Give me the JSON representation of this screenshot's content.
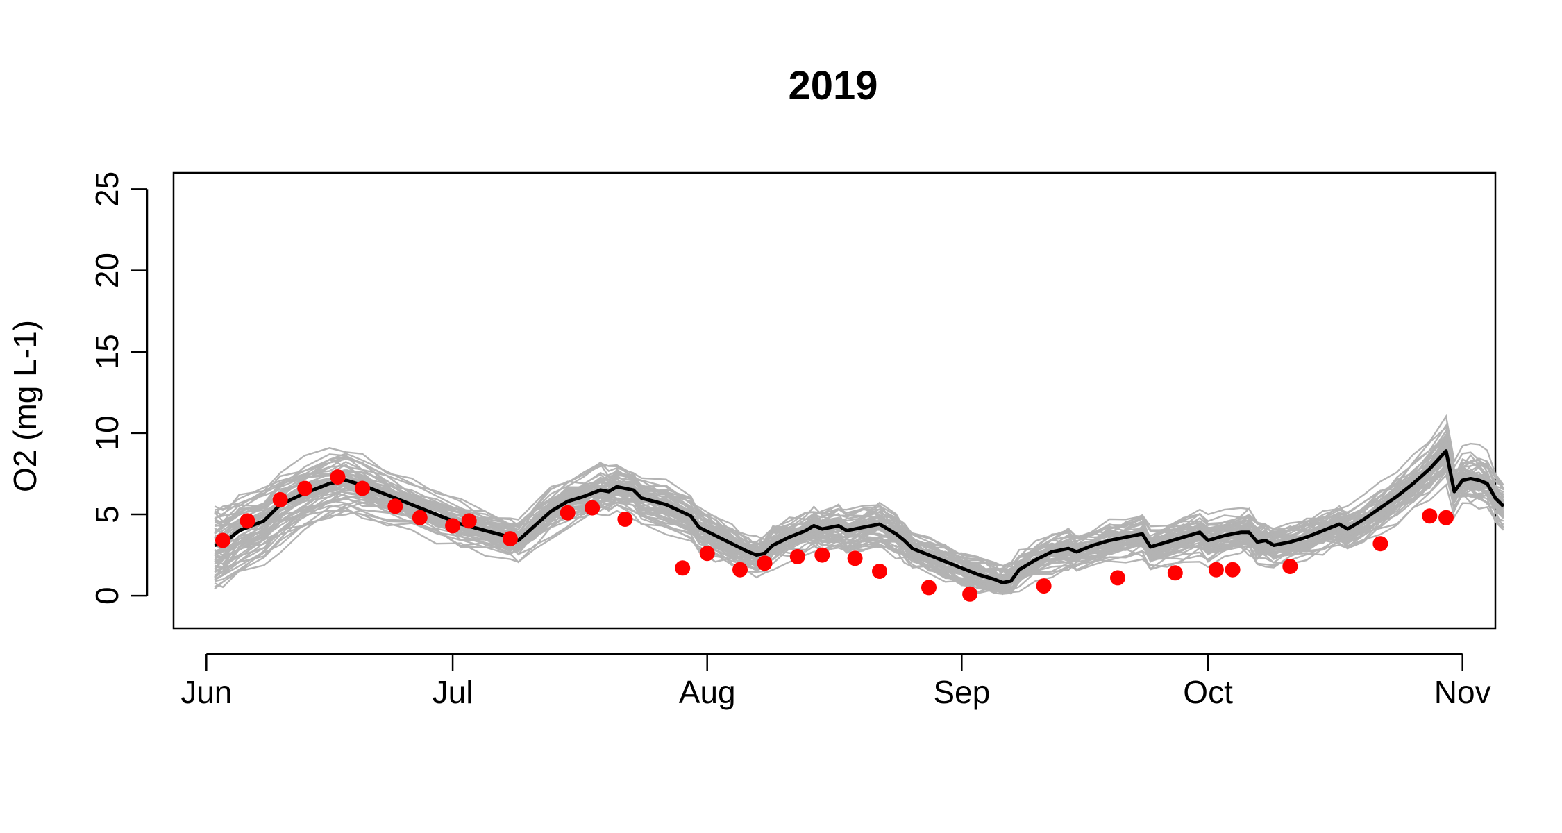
{
  "chart_data": {
    "type": "line",
    "title": "2019",
    "xlabel": "",
    "ylabel": "O2 (mg L-1)",
    "ylim": [
      -2,
      26
    ],
    "xlim": [
      "2019-05-28",
      "2019-11-05"
    ],
    "grid": false,
    "x_ticks": [
      {
        "date": "2019-06-01",
        "label": "Jun"
      },
      {
        "date": "2019-07-01",
        "label": "Jul"
      },
      {
        "date": "2019-08-01",
        "label": "Aug"
      },
      {
        "date": "2019-09-01",
        "label": "Sep"
      },
      {
        "date": "2019-10-01",
        "label": "Oct"
      },
      {
        "date": "2019-11-01",
        "label": "Nov"
      }
    ],
    "y_ticks": [
      0,
      5,
      10,
      15,
      20,
      25
    ],
    "colors": {
      "ensemble": "#b3b3b3",
      "mean": "#000000",
      "observed": "#ff0000"
    },
    "series": [
      {
        "kind": "ensemble-line",
        "values": [
          {
            "x": "2019-06-02",
            "y": 3.1
          },
          {
            "x": "2019-06-03",
            "y": 3.2
          },
          {
            "x": "2019-06-05",
            "y": 4.0
          },
          {
            "x": "2019-06-08",
            "y": 4.6
          },
          {
            "x": "2019-06-10",
            "y": 5.6
          },
          {
            "x": "2019-06-13",
            "y": 6.3
          },
          {
            "x": "2019-06-16",
            "y": 6.9
          },
          {
            "x": "2019-06-18",
            "y": 7.1
          },
          {
            "x": "2019-06-20",
            "y": 6.8
          },
          {
            "x": "2019-06-23",
            "y": 6.2
          },
          {
            "x": "2019-06-26",
            "y": 5.6
          },
          {
            "x": "2019-06-29",
            "y": 5.0
          },
          {
            "x": "2019-07-02",
            "y": 4.4
          },
          {
            "x": "2019-07-05",
            "y": 4.0
          },
          {
            "x": "2019-07-08",
            "y": 3.6
          },
          {
            "x": "2019-07-09",
            "y": 3.4
          },
          {
            "x": "2019-07-11",
            "y": 4.3
          },
          {
            "x": "2019-07-13",
            "y": 5.2
          },
          {
            "x": "2019-07-15",
            "y": 5.8
          },
          {
            "x": "2019-07-17",
            "y": 6.1
          },
          {
            "x": "2019-07-19",
            "y": 6.5
          },
          {
            "x": "2019-07-20",
            "y": 6.4
          },
          {
            "x": "2019-07-21",
            "y": 6.7
          },
          {
            "x": "2019-07-23",
            "y": 6.5
          },
          {
            "x": "2019-07-24",
            "y": 6.0
          },
          {
            "x": "2019-07-27",
            "y": 5.6
          },
          {
            "x": "2019-07-30",
            "y": 4.9
          },
          {
            "x": "2019-07-31",
            "y": 4.2
          },
          {
            "x": "2019-08-02",
            "y": 3.7
          },
          {
            "x": "2019-08-04",
            "y": 3.2
          },
          {
            "x": "2019-08-06",
            "y": 2.7
          },
          {
            "x": "2019-08-07",
            "y": 2.5
          },
          {
            "x": "2019-08-08",
            "y": 2.6
          },
          {
            "x": "2019-08-09",
            "y": 3.1
          },
          {
            "x": "2019-08-11",
            "y": 3.6
          },
          {
            "x": "2019-08-13",
            "y": 4.0
          },
          {
            "x": "2019-08-14",
            "y": 4.3
          },
          {
            "x": "2019-08-15",
            "y": 4.1
          },
          {
            "x": "2019-08-17",
            "y": 4.3
          },
          {
            "x": "2019-08-18",
            "y": 4.0
          },
          {
            "x": "2019-08-20",
            "y": 4.2
          },
          {
            "x": "2019-08-22",
            "y": 4.4
          },
          {
            "x": "2019-08-24",
            "y": 3.8
          },
          {
            "x": "2019-08-25",
            "y": 3.4
          },
          {
            "x": "2019-08-26",
            "y": 2.9
          },
          {
            "x": "2019-08-28",
            "y": 2.5
          },
          {
            "x": "2019-08-30",
            "y": 2.1
          },
          {
            "x": "2019-09-01",
            "y": 1.7
          },
          {
            "x": "2019-09-03",
            "y": 1.3
          },
          {
            "x": "2019-09-05",
            "y": 1.0
          },
          {
            "x": "2019-09-06",
            "y": 0.8
          },
          {
            "x": "2019-09-07",
            "y": 0.9
          },
          {
            "x": "2019-09-08",
            "y": 1.6
          },
          {
            "x": "2019-09-10",
            "y": 2.2
          },
          {
            "x": "2019-09-12",
            "y": 2.7
          },
          {
            "x": "2019-09-14",
            "y": 2.9
          },
          {
            "x": "2019-09-15",
            "y": 2.7
          },
          {
            "x": "2019-09-17",
            "y": 3.1
          },
          {
            "x": "2019-09-19",
            "y": 3.4
          },
          {
            "x": "2019-09-21",
            "y": 3.6
          },
          {
            "x": "2019-09-23",
            "y": 3.8
          },
          {
            "x": "2019-09-24",
            "y": 3.0
          },
          {
            "x": "2019-09-26",
            "y": 3.3
          },
          {
            "x": "2019-09-28",
            "y": 3.6
          },
          {
            "x": "2019-09-30",
            "y": 3.9
          },
          {
            "x": "2019-10-01",
            "y": 3.4
          },
          {
            "x": "2019-10-03",
            "y": 3.7
          },
          {
            "x": "2019-10-05",
            "y": 3.9
          },
          {
            "x": "2019-10-06",
            "y": 3.9
          },
          {
            "x": "2019-10-07",
            "y": 3.3
          },
          {
            "x": "2019-10-08",
            "y": 3.4
          },
          {
            "x": "2019-10-09",
            "y": 3.1
          },
          {
            "x": "2019-10-11",
            "y": 3.3
          },
          {
            "x": "2019-10-13",
            "y": 3.6
          },
          {
            "x": "2019-10-15",
            "y": 4.0
          },
          {
            "x": "2019-10-17",
            "y": 4.4
          },
          {
            "x": "2019-10-18",
            "y": 4.1
          },
          {
            "x": "2019-10-20",
            "y": 4.7
          },
          {
            "x": "2019-10-22",
            "y": 5.4
          },
          {
            "x": "2019-10-24",
            "y": 6.1
          },
          {
            "x": "2019-10-26",
            "y": 6.9
          },
          {
            "x": "2019-10-28",
            "y": 7.8
          },
          {
            "x": "2019-10-30",
            "y": 8.9
          },
          {
            "x": "2019-10-31",
            "y": 6.4
          },
          {
            "x": "2019-11-01",
            "y": 7.1
          },
          {
            "x": "2019-11-02",
            "y": 7.2
          },
          {
            "x": "2019-11-03",
            "y": 7.1
          },
          {
            "x": "2019-11-04",
            "y": 6.9
          },
          {
            "x": "2019-11-05",
            "y": 6.0
          },
          {
            "x": "2019-11-06",
            "y": 5.5
          }
        ]
      },
      {
        "kind": "mean-line",
        "values": [
          {
            "x": "2019-06-02",
            "y": 3.1
          },
          {
            "x": "2019-06-03",
            "y": 3.2
          },
          {
            "x": "2019-06-05",
            "y": 4.0
          },
          {
            "x": "2019-06-08",
            "y": 4.6
          },
          {
            "x": "2019-06-10",
            "y": 5.6
          },
          {
            "x": "2019-06-13",
            "y": 6.3
          },
          {
            "x": "2019-06-16",
            "y": 6.9
          },
          {
            "x": "2019-06-18",
            "y": 7.1
          },
          {
            "x": "2019-06-20",
            "y": 6.8
          },
          {
            "x": "2019-06-23",
            "y": 6.2
          },
          {
            "x": "2019-06-26",
            "y": 5.6
          },
          {
            "x": "2019-06-29",
            "y": 5.0
          },
          {
            "x": "2019-07-02",
            "y": 4.4
          },
          {
            "x": "2019-07-05",
            "y": 4.0
          },
          {
            "x": "2019-07-08",
            "y": 3.6
          },
          {
            "x": "2019-07-09",
            "y": 3.4
          },
          {
            "x": "2019-07-11",
            "y": 4.3
          },
          {
            "x": "2019-07-13",
            "y": 5.2
          },
          {
            "x": "2019-07-15",
            "y": 5.8
          },
          {
            "x": "2019-07-17",
            "y": 6.1
          },
          {
            "x": "2019-07-19",
            "y": 6.5
          },
          {
            "x": "2019-07-20",
            "y": 6.4
          },
          {
            "x": "2019-07-21",
            "y": 6.7
          },
          {
            "x": "2019-07-23",
            "y": 6.5
          },
          {
            "x": "2019-07-24",
            "y": 6.0
          },
          {
            "x": "2019-07-27",
            "y": 5.6
          },
          {
            "x": "2019-07-30",
            "y": 4.9
          },
          {
            "x": "2019-07-31",
            "y": 4.2
          },
          {
            "x": "2019-08-02",
            "y": 3.7
          },
          {
            "x": "2019-08-04",
            "y": 3.2
          },
          {
            "x": "2019-08-06",
            "y": 2.7
          },
          {
            "x": "2019-08-07",
            "y": 2.5
          },
          {
            "x": "2019-08-08",
            "y": 2.6
          },
          {
            "x": "2019-08-09",
            "y": 3.1
          },
          {
            "x": "2019-08-11",
            "y": 3.6
          },
          {
            "x": "2019-08-13",
            "y": 4.0
          },
          {
            "x": "2019-08-14",
            "y": 4.3
          },
          {
            "x": "2019-08-15",
            "y": 4.1
          },
          {
            "x": "2019-08-17",
            "y": 4.3
          },
          {
            "x": "2019-08-18",
            "y": 4.0
          },
          {
            "x": "2019-08-20",
            "y": 4.2
          },
          {
            "x": "2019-08-22",
            "y": 4.4
          },
          {
            "x": "2019-08-24",
            "y": 3.8
          },
          {
            "x": "2019-08-25",
            "y": 3.4
          },
          {
            "x": "2019-08-26",
            "y": 2.9
          },
          {
            "x": "2019-08-28",
            "y": 2.5
          },
          {
            "x": "2019-08-30",
            "y": 2.1
          },
          {
            "x": "2019-09-01",
            "y": 1.7
          },
          {
            "x": "2019-09-03",
            "y": 1.3
          },
          {
            "x": "2019-09-05",
            "y": 1.0
          },
          {
            "x": "2019-09-06",
            "y": 0.8
          },
          {
            "x": "2019-09-07",
            "y": 0.9
          },
          {
            "x": "2019-09-08",
            "y": 1.6
          },
          {
            "x": "2019-09-10",
            "y": 2.2
          },
          {
            "x": "2019-09-12",
            "y": 2.7
          },
          {
            "x": "2019-09-14",
            "y": 2.9
          },
          {
            "x": "2019-09-15",
            "y": 2.7
          },
          {
            "x": "2019-09-17",
            "y": 3.1
          },
          {
            "x": "2019-09-19",
            "y": 3.4
          },
          {
            "x": "2019-09-21",
            "y": 3.6
          },
          {
            "x": "2019-09-23",
            "y": 3.8
          },
          {
            "x": "2019-09-24",
            "y": 3.0
          },
          {
            "x": "2019-09-26",
            "y": 3.3
          },
          {
            "x": "2019-09-28",
            "y": 3.6
          },
          {
            "x": "2019-09-30",
            "y": 3.9
          },
          {
            "x": "2019-10-01",
            "y": 3.4
          },
          {
            "x": "2019-10-03",
            "y": 3.7
          },
          {
            "x": "2019-10-05",
            "y": 3.9
          },
          {
            "x": "2019-10-06",
            "y": 3.9
          },
          {
            "x": "2019-10-07",
            "y": 3.3
          },
          {
            "x": "2019-10-08",
            "y": 3.4
          },
          {
            "x": "2019-10-09",
            "y": 3.1
          },
          {
            "x": "2019-10-11",
            "y": 3.3
          },
          {
            "x": "2019-10-13",
            "y": 3.6
          },
          {
            "x": "2019-10-15",
            "y": 4.0
          },
          {
            "x": "2019-10-17",
            "y": 4.4
          },
          {
            "x": "2019-10-18",
            "y": 4.1
          },
          {
            "x": "2019-10-20",
            "y": 4.7
          },
          {
            "x": "2019-10-22",
            "y": 5.4
          },
          {
            "x": "2019-10-24",
            "y": 6.1
          },
          {
            "x": "2019-10-26",
            "y": 6.9
          },
          {
            "x": "2019-10-28",
            "y": 7.8
          },
          {
            "x": "2019-10-30",
            "y": 8.9
          },
          {
            "x": "2019-10-31",
            "y": 6.4
          },
          {
            "x": "2019-11-01",
            "y": 7.1
          },
          {
            "x": "2019-11-02",
            "y": 7.2
          },
          {
            "x": "2019-11-03",
            "y": 7.1
          },
          {
            "x": "2019-11-04",
            "y": 6.9
          },
          {
            "x": "2019-11-05",
            "y": 6.0
          },
          {
            "x": "2019-11-06",
            "y": 5.5
          }
        ]
      },
      {
        "kind": "observed-points",
        "values": [
          {
            "x": "2019-06-03",
            "y": 3.4
          },
          {
            "x": "2019-06-06",
            "y": 4.6
          },
          {
            "x": "2019-06-10",
            "y": 5.9
          },
          {
            "x": "2019-06-13",
            "y": 6.6
          },
          {
            "x": "2019-06-17",
            "y": 7.3
          },
          {
            "x": "2019-06-20",
            "y": 6.6
          },
          {
            "x": "2019-06-24",
            "y": 5.5
          },
          {
            "x": "2019-06-27",
            "y": 4.8
          },
          {
            "x": "2019-07-01",
            "y": 4.3
          },
          {
            "x": "2019-07-03",
            "y": 4.6
          },
          {
            "x": "2019-07-08",
            "y": 3.5
          },
          {
            "x": "2019-07-15",
            "y": 5.1
          },
          {
            "x": "2019-07-18",
            "y": 5.4
          },
          {
            "x": "2019-07-22",
            "y": 4.7
          },
          {
            "x": "2019-07-29",
            "y": 1.7
          },
          {
            "x": "2019-08-01",
            "y": 2.6
          },
          {
            "x": "2019-08-05",
            "y": 1.6
          },
          {
            "x": "2019-08-08",
            "y": 2.0
          },
          {
            "x": "2019-08-12",
            "y": 2.4
          },
          {
            "x": "2019-08-15",
            "y": 2.5
          },
          {
            "x": "2019-08-19",
            "y": 2.3
          },
          {
            "x": "2019-08-22",
            "y": 1.5
          },
          {
            "x": "2019-08-28",
            "y": 0.5
          },
          {
            "x": "2019-09-02",
            "y": 0.1
          },
          {
            "x": "2019-09-11",
            "y": 0.6
          },
          {
            "x": "2019-09-20",
            "y": 1.1
          },
          {
            "x": "2019-09-27",
            "y": 1.4
          },
          {
            "x": "2019-10-02",
            "y": 1.6
          },
          {
            "x": "2019-10-04",
            "y": 1.6
          },
          {
            "x": "2019-10-11",
            "y": 1.8
          },
          {
            "x": "2019-10-22",
            "y": 3.2
          },
          {
            "x": "2019-10-28",
            "y": 4.9
          },
          {
            "x": "2019-10-30",
            "y": 4.8
          }
        ]
      }
    ]
  }
}
